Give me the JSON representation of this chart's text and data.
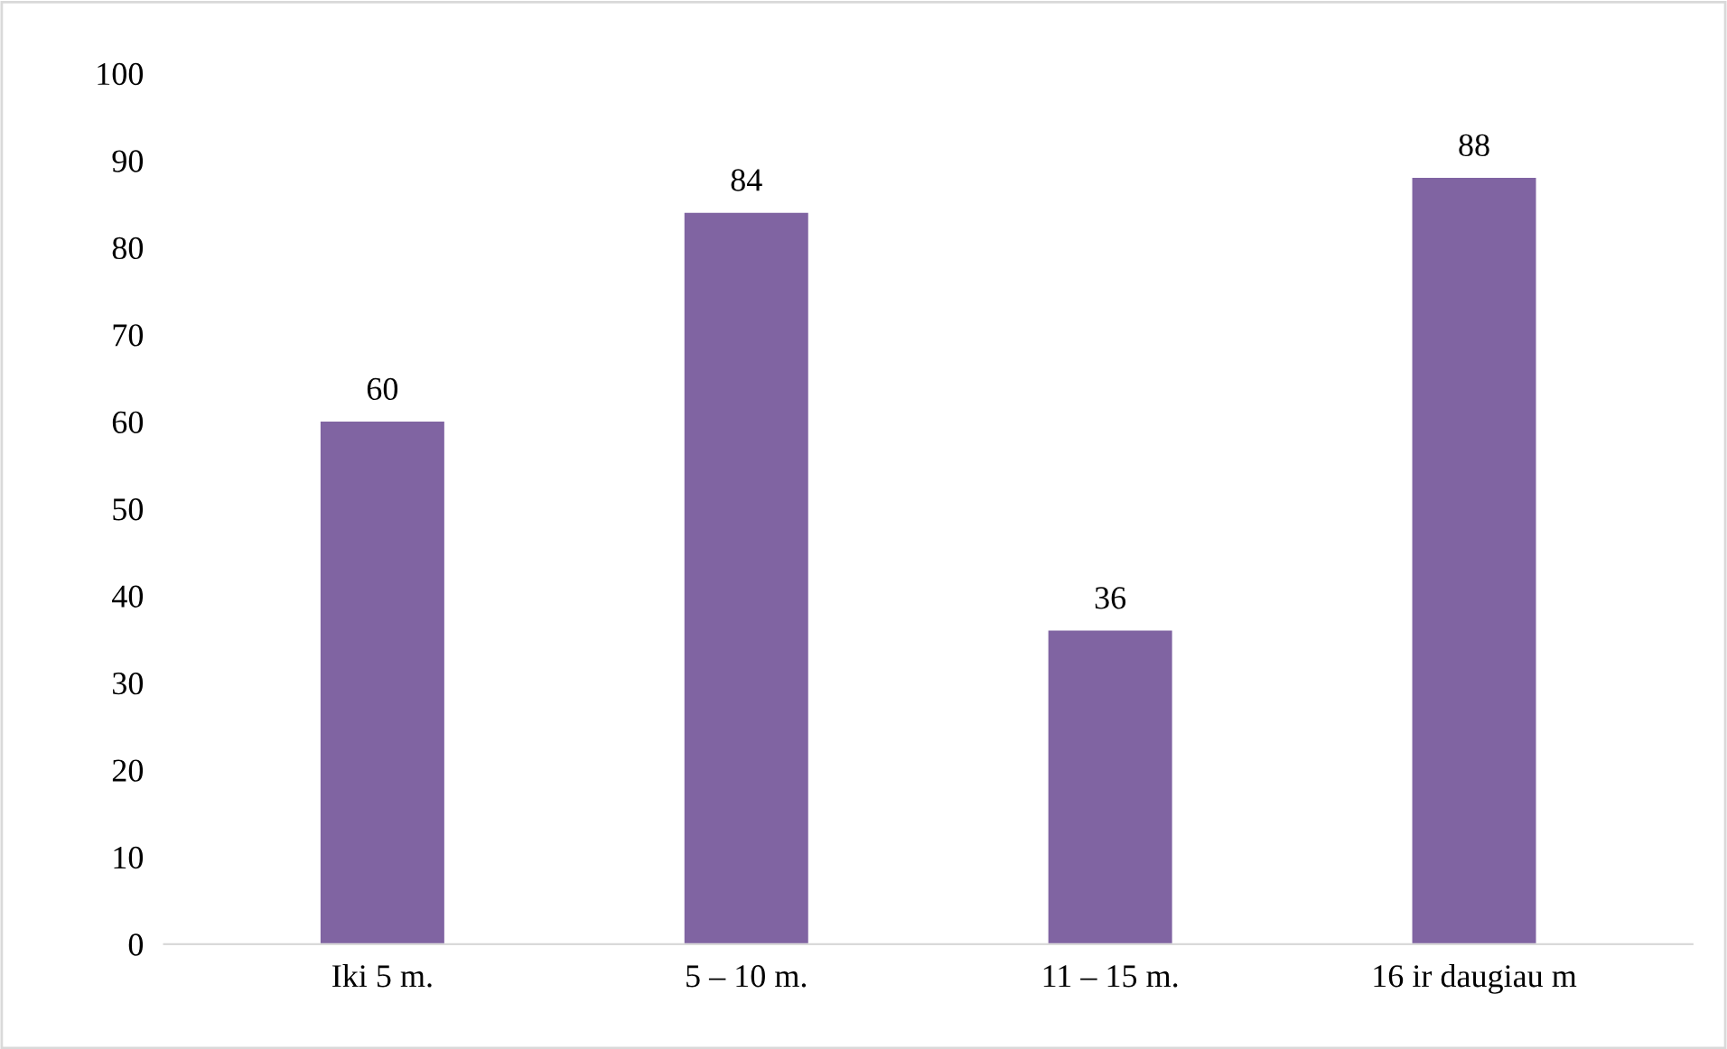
{
  "chart_data": {
    "type": "bar",
    "categories": [
      "Iki 5 m.",
      "5 – 10 m.",
      "11 – 15 m.",
      "16 ir daugiau m"
    ],
    "values": [
      60,
      84,
      36,
      88
    ],
    "color": "#8064a2",
    "ylim": [
      0,
      100
    ],
    "yticks": [
      0,
      10,
      20,
      30,
      40,
      50,
      60,
      70,
      80,
      90,
      100
    ],
    "data_labels": true,
    "grid": false,
    "legend": false
  }
}
